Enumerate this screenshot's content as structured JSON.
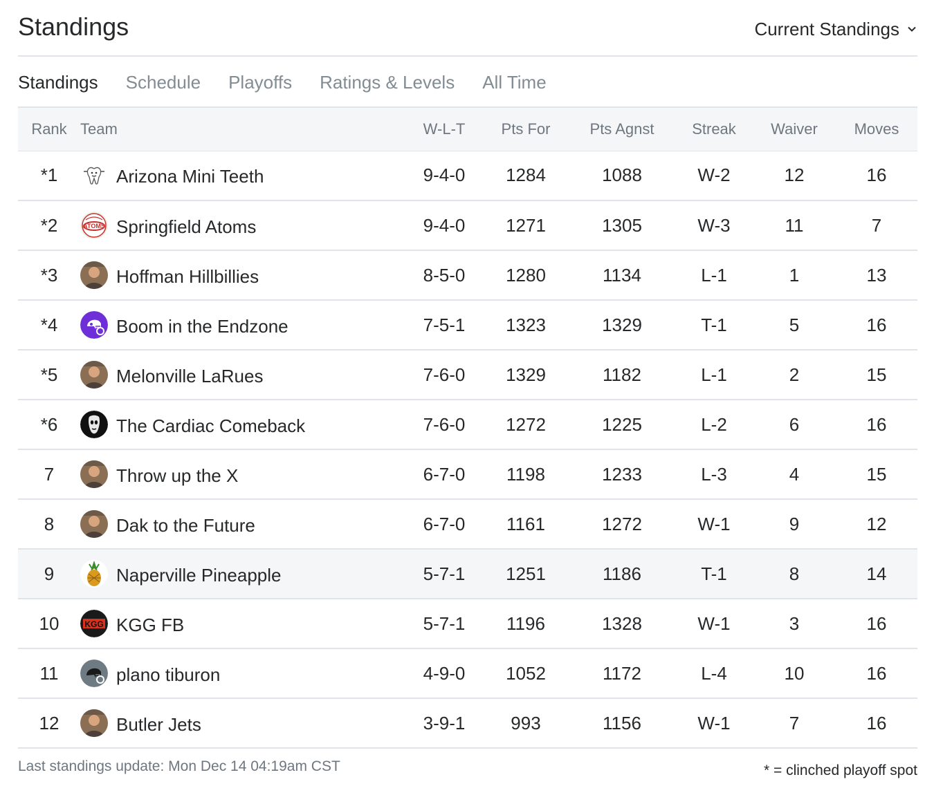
{
  "header": {
    "title": "Standings",
    "view_select": "Current Standings"
  },
  "tabs": [
    {
      "label": "Standings",
      "active": true
    },
    {
      "label": "Schedule",
      "active": false
    },
    {
      "label": "Playoffs",
      "active": false
    },
    {
      "label": "Ratings & Levels",
      "active": false
    },
    {
      "label": "All Time",
      "active": false
    }
  ],
  "table": {
    "columns": [
      "Rank",
      "Team",
      "W-L-T",
      "Pts For",
      "Pts Agnst",
      "Streak",
      "Waiver",
      "Moves"
    ],
    "rows": [
      {
        "rank": "*1",
        "team": "Arizona Mini Teeth",
        "wlt": "9-4-0",
        "pts_for": "1284",
        "pts_agnst": "1088",
        "streak": "W-2",
        "waiver": "12",
        "moves": "16",
        "logo": "tooth-logo-icon"
      },
      {
        "rank": "*2",
        "team": "Springfield Atoms",
        "wlt": "9-4-0",
        "pts_for": "1271",
        "pts_agnst": "1305",
        "streak": "W-3",
        "waiver": "11",
        "moves": "7",
        "logo": "atoms-logo-icon"
      },
      {
        "rank": "*3",
        "team": "Hoffman Hillbillies",
        "wlt": "8-5-0",
        "pts_for": "1280",
        "pts_agnst": "1134",
        "streak": "L-1",
        "waiver": "1",
        "moves": "13",
        "logo": "team-photo-icon"
      },
      {
        "rank": "*4",
        "team": "Boom in the Endzone",
        "wlt": "7-5-1",
        "pts_for": "1323",
        "pts_agnst": "1329",
        "streak": "T-1",
        "waiver": "5",
        "moves": "16",
        "logo": "purple-helmet-icon"
      },
      {
        "rank": "*5",
        "team": "Melonville LaRues",
        "wlt": "7-6-0",
        "pts_for": "1329",
        "pts_agnst": "1182",
        "streak": "L-1",
        "waiver": "2",
        "moves": "15",
        "logo": "team-photo-icon"
      },
      {
        "rank": "*6",
        "team": "The Cardiac Comeback",
        "wlt": "7-6-0",
        "pts_for": "1272",
        "pts_agnst": "1225",
        "streak": "L-2",
        "waiver": "6",
        "moves": "16",
        "logo": "mask-logo-icon"
      },
      {
        "rank": "7",
        "team": "Throw up the X",
        "wlt": "6-7-0",
        "pts_for": "1198",
        "pts_agnst": "1233",
        "streak": "L-3",
        "waiver": "4",
        "moves": "15",
        "logo": "team-photo-icon"
      },
      {
        "rank": "8",
        "team": "Dak to the Future",
        "wlt": "6-7-0",
        "pts_for": "1161",
        "pts_agnst": "1272",
        "streak": "W-1",
        "waiver": "9",
        "moves": "12",
        "logo": "team-photo-icon"
      },
      {
        "rank": "9",
        "team": "Naperville Pineapple",
        "wlt": "5-7-1",
        "pts_for": "1251",
        "pts_agnst": "1186",
        "streak": "T-1",
        "waiver": "8",
        "moves": "14",
        "logo": "pineapple-logo-icon",
        "highlight": true
      },
      {
        "rank": "10",
        "team": "KGG FB",
        "wlt": "5-7-1",
        "pts_for": "1196",
        "pts_agnst": "1328",
        "streak": "W-1",
        "waiver": "3",
        "moves": "16",
        "logo": "kgg-logo-icon"
      },
      {
        "rank": "11",
        "team": "plano tiburon",
        "wlt": "4-9-0",
        "pts_for": "1052",
        "pts_agnst": "1172",
        "streak": "L-4",
        "waiver": "10",
        "moves": "16",
        "logo": "gray-helmet-icon"
      },
      {
        "rank": "12",
        "team": "Butler Jets",
        "wlt": "3-9-1",
        "pts_for": "993",
        "pts_agnst": "1156",
        "streak": "W-1",
        "waiver": "7",
        "moves": "16",
        "logo": "team-photo-icon"
      }
    ]
  },
  "footer": {
    "updated": "Last standings update: Mon Dec 14 04:19am CST",
    "note": "* = clinched playoff spot"
  },
  "colors": {
    "text": "#26282a",
    "muted": "#828c93",
    "header_bg": "#f5f6f7",
    "border": "#e0e4e9",
    "helmet_purple": "#6e2fd8",
    "kgg_red": "#d8321e"
  }
}
